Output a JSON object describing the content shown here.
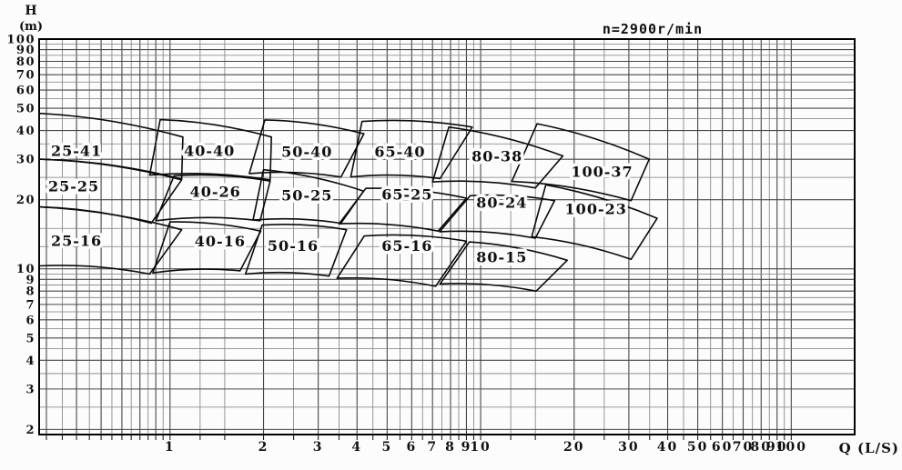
{
  "page": {
    "background": "#fcfcfc",
    "line_color": "#111111",
    "grid_major_color": "#474747",
    "grid_minor_color": "#7d7d7d"
  },
  "chart_data": {
    "type": "area",
    "chart_kind": "pump-model-selection-spectrum",
    "annotation": "n=2900r/min",
    "xlabel": "Q (L/S)",
    "ylabel_lines": [
      "H",
      "(m)"
    ],
    "x_scale": "log",
    "y_scale": "log",
    "xlim": [
      0.379,
      160
    ],
    "ylim": [
      1.9,
      100
    ],
    "grid": {
      "on": true,
      "x_grid_max": 100,
      "minor_multipliers": [
        1,
        1.25,
        1.5,
        2,
        2.5,
        3,
        3.5,
        4,
        4.5,
        5,
        5.5,
        6,
        6.5,
        7,
        7.5,
        8,
        8.5,
        9,
        9.5
      ]
    },
    "x_tick_labels": [
      1,
      2,
      3,
      4,
      5,
      6,
      7,
      8,
      9,
      10,
      20,
      30,
      40,
      50,
      60,
      70,
      80,
      90,
      100
    ],
    "y_tick_labels": [
      100,
      90,
      80,
      70,
      60,
      50,
      40,
      30,
      20,
      10,
      9,
      8,
      7,
      6,
      5,
      4,
      3,
      2
    ],
    "regions": [
      {
        "label": "25-41",
        "label_pos": [
          0.5,
          32.5
        ],
        "tl": [
          0.379,
          47.5
        ],
        "tr": [
          1.1,
          37.5
        ],
        "br": [
          1.09,
          24.6
        ],
        "bl": [
          0.379,
          30.0
        ]
      },
      {
        "label": "40-40",
        "label_pos": [
          1.34,
          32.5
        ],
        "tl": [
          0.93,
          44.6
        ],
        "tr": [
          2.12,
          37.5
        ],
        "br": [
          2.1,
          24.4
        ],
        "bl": [
          0.86,
          25.6
        ]
      },
      {
        "label": "50-40",
        "label_pos": [
          2.76,
          32.2
        ],
        "tl": [
          2.02,
          44.5
        ],
        "tr": [
          4.21,
          38.7
        ],
        "br": [
          3.55,
          25.1
        ],
        "bl": [
          1.8,
          26.0
        ]
      },
      {
        "label": "65-40",
        "label_pos": [
          5.5,
          32.2
        ],
        "tl": [
          4.15,
          43.8
        ],
        "tr": [
          9.4,
          41.4
        ],
        "br": [
          7.4,
          24.7
        ],
        "bl": [
          3.82,
          25.1
        ]
      },
      {
        "label": "80-38",
        "label_pos": [
          11.3,
          30.8
        ],
        "tl": [
          7.9,
          41.4
        ],
        "tr": [
          18.4,
          31.0
        ],
        "br": [
          15.0,
          22.5
        ],
        "bl": [
          7.0,
          23.9
        ]
      },
      {
        "label": "100-37",
        "label_pos": [
          24.6,
          26.3
        ],
        "tl": [
          15.2,
          42.8
        ],
        "tr": [
          34.9,
          30.0
        ],
        "br": [
          30.5,
          19.8
        ],
        "bl": [
          12.6,
          24.0
        ]
      },
      {
        "label": "25-25",
        "label_pos": [
          0.49,
          22.8
        ],
        "tl": [
          0.379,
          30.0
        ],
        "tr": [
          1.09,
          24.4
        ],
        "br": [
          0.87,
          15.8
        ],
        "bl": [
          0.379,
          18.6
        ]
      },
      {
        "label": "40-26",
        "label_pos": [
          1.4,
          21.5
        ],
        "tl": [
          1.03,
          25.4
        ],
        "tr": [
          2.1,
          24.1
        ],
        "br": [
          1.95,
          16.2
        ],
        "bl": [
          0.9,
          16.2
        ]
      },
      {
        "label": "50-25",
        "label_pos": [
          2.76,
          20.8
        ],
        "tl": [
          2.0,
          27.0
        ],
        "tr": [
          4.2,
          21.8
        ],
        "br": [
          3.55,
          15.8
        ],
        "bl": [
          1.85,
          16.3
        ]
      },
      {
        "label": "65-25",
        "label_pos": [
          5.8,
          21.0
        ],
        "tl": [
          4.27,
          22.4
        ],
        "tr": [
          9.0,
          20.3
        ],
        "br": [
          7.3,
          14.6
        ],
        "bl": [
          3.5,
          15.7
        ]
      },
      {
        "label": "80-24",
        "label_pos": [
          11.7,
          19.3
        ],
        "tl": [
          9.25,
          20.8
        ],
        "tr": [
          17.3,
          19.8
        ],
        "br": [
          15.0,
          13.6
        ],
        "bl": [
          7.38,
          14.5
        ]
      },
      {
        "label": "100-23",
        "label_pos": [
          23.5,
          18.1
        ],
        "tl": [
          16.2,
          23.2
        ],
        "tr": [
          37.0,
          16.6
        ],
        "br": [
          30.5,
          11.0
        ],
        "bl": [
          14.6,
          13.8
        ]
      },
      {
        "label": "25-16",
        "label_pos": [
          0.5,
          13.2
        ],
        "tl": [
          0.379,
          18.6
        ],
        "tr": [
          1.09,
          14.8
        ],
        "br": [
          0.86,
          9.5
        ],
        "bl": [
          0.379,
          10.3
        ]
      },
      {
        "label": "40-16",
        "label_pos": [
          1.45,
          13.1
        ],
        "tl": [
          1.0,
          16.0
        ],
        "tr": [
          1.96,
          14.6
        ],
        "br": [
          1.68,
          9.8
        ],
        "bl": [
          0.88,
          9.6
        ]
      },
      {
        "label": "50-16",
        "label_pos": [
          2.49,
          12.5
        ],
        "tl": [
          1.98,
          15.5
        ],
        "tr": [
          3.7,
          14.8
        ],
        "br": [
          3.25,
          9.3
        ],
        "bl": [
          1.75,
          9.5
        ]
      },
      {
        "label": "65-16",
        "label_pos": [
          5.8,
          12.5
        ],
        "tl": [
          4.22,
          13.9
        ],
        "tr": [
          9.0,
          13.2
        ],
        "br": [
          7.16,
          8.4
        ],
        "bl": [
          3.45,
          9.1
        ]
      },
      {
        "label": "80-15",
        "label_pos": [
          11.7,
          11.2
        ],
        "tl": [
          9.2,
          13.1
        ],
        "tr": [
          19.0,
          10.9
        ],
        "br": [
          15.1,
          8.0
        ],
        "bl": [
          7.4,
          8.6
        ]
      }
    ]
  }
}
